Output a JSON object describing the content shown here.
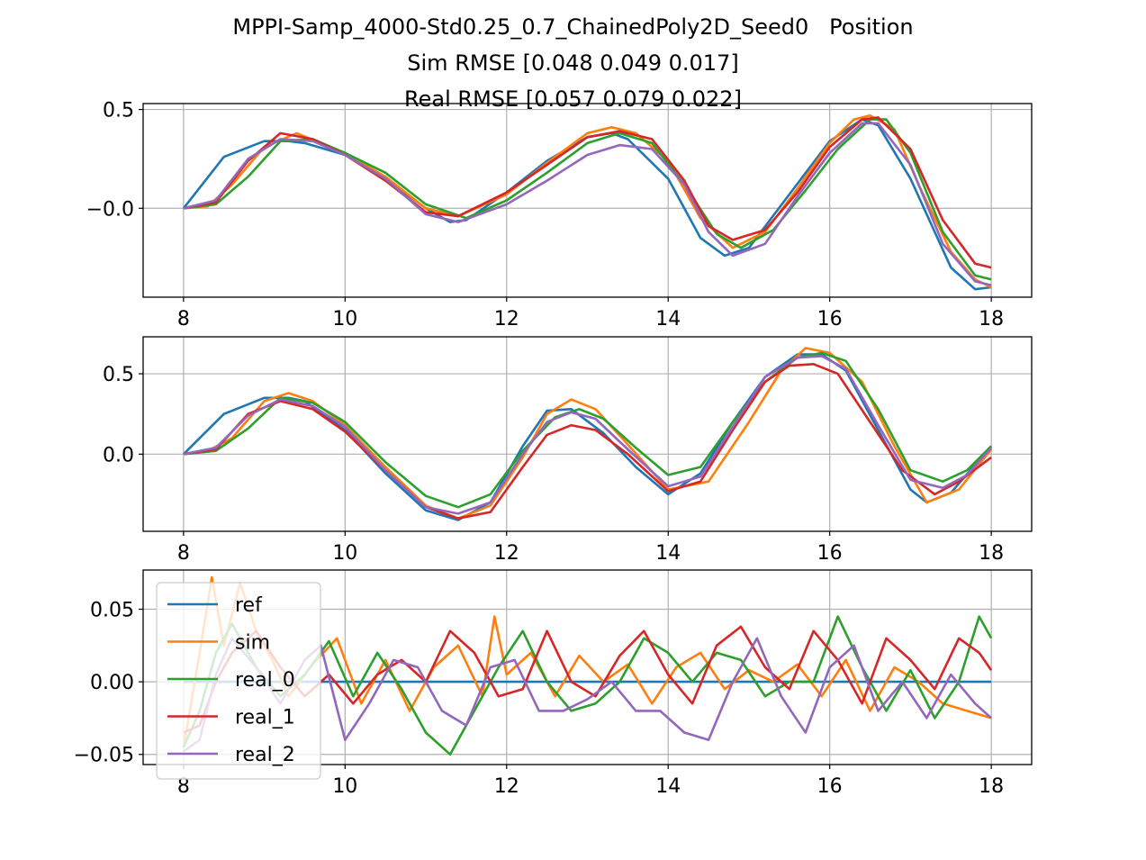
{
  "figure": {
    "title_lines": [
      "MPPI-Samp_4000-Std0.25_0.7_ChainedPoly2D_Seed0   Position",
      "Sim RMSE [0.048 0.049 0.017]",
      "Real RMSE [0.057 0.079 0.022]"
    ],
    "colors": {
      "ref": "#1f77b4",
      "sim": "#ff7f0e",
      "real_0": "#2ca02c",
      "real_1": "#d62728",
      "real_2": "#9467bd",
      "grid": "#b0b0b0"
    }
  },
  "legend": {
    "entries": [
      "ref",
      "sim",
      "real_0",
      "real_1",
      "real_2"
    ],
    "placement": "upper-left of bottom panel"
  },
  "chart_data": [
    {
      "type": "line",
      "panel": "x",
      "xlim": [
        7.5,
        18.5
      ],
      "ylim": [
        -0.45,
        0.53
      ],
      "xticks": [
        "8",
        "10",
        "12",
        "14",
        "16",
        "18"
      ],
      "yticks": [
        "−0.0",
        "0.5"
      ],
      "ytick_values": [
        0.0,
        0.5
      ],
      "grid": true,
      "series": [
        {
          "name": "ref",
          "x": [
            8.0,
            8.5,
            9.0,
            9.3,
            9.5,
            10.0,
            10.5,
            11.0,
            11.3,
            11.5,
            12.0,
            12.5,
            13.0,
            13.3,
            13.5,
            14.0,
            14.4,
            14.7,
            15.0,
            15.5,
            16.0,
            16.4,
            16.6,
            17.0,
            17.5,
            17.8,
            18.0
          ],
          "values": [
            0.0,
            0.26,
            0.34,
            0.34,
            0.33,
            0.27,
            0.15,
            0.0,
            -0.07,
            -0.06,
            0.08,
            0.24,
            0.36,
            0.38,
            0.35,
            0.15,
            -0.15,
            -0.24,
            -0.2,
            0.07,
            0.34,
            0.45,
            0.42,
            0.15,
            -0.3,
            -0.41,
            -0.4
          ]
        },
        {
          "name": "sim",
          "x": [
            8.0,
            8.3,
            8.6,
            9.0,
            9.4,
            10.0,
            10.5,
            11.0,
            11.4,
            12.0,
            12.5,
            13.0,
            13.3,
            13.6,
            14.0,
            14.4,
            14.8,
            15.2,
            15.6,
            16.0,
            16.3,
            16.5,
            16.8,
            17.1,
            17.5,
            17.8,
            18.0
          ],
          "values": [
            0.0,
            0.01,
            0.12,
            0.31,
            0.38,
            0.28,
            0.16,
            0.0,
            -0.04,
            0.07,
            0.23,
            0.38,
            0.41,
            0.38,
            0.24,
            -0.05,
            -0.2,
            -0.12,
            0.1,
            0.33,
            0.45,
            0.47,
            0.4,
            0.12,
            -0.22,
            -0.36,
            -0.4
          ]
        },
        {
          "name": "real_0",
          "x": [
            8.0,
            8.4,
            8.8,
            9.2,
            9.6,
            10.0,
            10.5,
            11.0,
            11.5,
            12.0,
            12.5,
            13.0,
            13.4,
            13.8,
            14.2,
            14.6,
            14.9,
            15.3,
            15.7,
            16.1,
            16.5,
            16.7,
            17.0,
            17.4,
            17.8,
            18.0
          ],
          "values": [
            0.0,
            0.02,
            0.16,
            0.34,
            0.35,
            0.28,
            0.18,
            0.02,
            -0.05,
            0.04,
            0.18,
            0.33,
            0.38,
            0.33,
            0.12,
            -0.13,
            -0.2,
            -0.11,
            0.09,
            0.3,
            0.45,
            0.45,
            0.28,
            -0.12,
            -0.34,
            -0.36
          ]
        },
        {
          "name": "real_1",
          "x": [
            8.0,
            8.4,
            8.8,
            9.2,
            9.6,
            10.0,
            10.5,
            11.0,
            11.4,
            12.0,
            12.5,
            13.0,
            13.4,
            13.8,
            14.2,
            14.5,
            14.8,
            15.2,
            15.6,
            16.0,
            16.4,
            16.6,
            17.0,
            17.4,
            17.8,
            18.0
          ],
          "values": [
            0.0,
            0.03,
            0.24,
            0.38,
            0.35,
            0.27,
            0.14,
            -0.02,
            -0.04,
            0.08,
            0.22,
            0.36,
            0.39,
            0.35,
            0.14,
            -0.09,
            -0.16,
            -0.11,
            0.08,
            0.31,
            0.45,
            0.46,
            0.3,
            -0.06,
            -0.28,
            -0.3
          ]
        },
        {
          "name": "real_2",
          "x": [
            8.0,
            8.4,
            8.8,
            9.2,
            9.6,
            10.0,
            10.5,
            11.0,
            11.4,
            12.0,
            12.5,
            13.0,
            13.4,
            13.8,
            14.2,
            14.5,
            14.8,
            15.2,
            15.6,
            16.0,
            16.4,
            16.6,
            17.0,
            17.4,
            17.8,
            18.0
          ],
          "values": [
            0.0,
            0.04,
            0.25,
            0.35,
            0.34,
            0.27,
            0.15,
            -0.03,
            -0.07,
            0.02,
            0.14,
            0.27,
            0.32,
            0.3,
            0.12,
            -0.12,
            -0.24,
            -0.18,
            0.06,
            0.28,
            0.43,
            0.43,
            0.22,
            -0.18,
            -0.37,
            -0.39
          ]
        }
      ]
    },
    {
      "type": "line",
      "panel": "y",
      "xlim": [
        7.5,
        18.5
      ],
      "ylim": [
        -0.48,
        0.73
      ],
      "xticks": [
        "8",
        "10",
        "12",
        "14",
        "16",
        "18"
      ],
      "yticks": [
        "0.0",
        "0.5"
      ],
      "ytick_values": [
        0.0,
        0.5
      ],
      "grid": true,
      "series": [
        {
          "name": "ref",
          "x": [
            8.0,
            8.5,
            9.0,
            9.3,
            9.5,
            10.0,
            10.5,
            11.0,
            11.4,
            11.8,
            12.2,
            12.5,
            12.8,
            13.2,
            13.6,
            14.0,
            14.4,
            14.8,
            15.2,
            15.6,
            15.9,
            16.2,
            16.6,
            17.0,
            17.2,
            17.5,
            18.0
          ],
          "values": [
            0.0,
            0.25,
            0.35,
            0.35,
            0.33,
            0.15,
            -0.12,
            -0.35,
            -0.41,
            -0.3,
            0.05,
            0.27,
            0.28,
            0.13,
            -0.08,
            -0.25,
            -0.12,
            0.2,
            0.48,
            0.62,
            0.62,
            0.52,
            0.15,
            -0.22,
            -0.3,
            -0.24,
            0.05
          ]
        },
        {
          "name": "sim",
          "x": [
            8.0,
            8.3,
            8.6,
            9.0,
            9.3,
            9.6,
            10.0,
            10.5,
            11.0,
            11.4,
            11.8,
            12.2,
            12.5,
            12.8,
            13.1,
            13.5,
            14.0,
            14.5,
            15.0,
            15.4,
            15.7,
            16.0,
            16.4,
            16.8,
            17.2,
            17.6,
            18.0
          ],
          "values": [
            0.0,
            0.02,
            0.1,
            0.33,
            0.38,
            0.33,
            0.18,
            -0.08,
            -0.32,
            -0.4,
            -0.32,
            -0.02,
            0.25,
            0.34,
            0.28,
            0.06,
            -0.22,
            -0.17,
            0.2,
            0.52,
            0.66,
            0.63,
            0.45,
            0.05,
            -0.3,
            -0.22,
            0.03
          ]
        },
        {
          "name": "real_0",
          "x": [
            8.0,
            8.4,
            8.8,
            9.2,
            9.6,
            10.0,
            10.5,
            11.0,
            11.4,
            11.8,
            12.2,
            12.6,
            12.9,
            13.2,
            13.6,
            14.0,
            14.4,
            14.8,
            15.2,
            15.6,
            15.9,
            16.2,
            16.6,
            17.0,
            17.4,
            17.7,
            18.0
          ],
          "values": [
            0.0,
            0.02,
            0.16,
            0.35,
            0.32,
            0.2,
            -0.05,
            -0.26,
            -0.33,
            -0.25,
            0.02,
            0.23,
            0.28,
            0.22,
            0.04,
            -0.13,
            -0.08,
            0.2,
            0.45,
            0.6,
            0.63,
            0.58,
            0.28,
            -0.1,
            -0.17,
            -0.1,
            0.05
          ]
        },
        {
          "name": "real_1",
          "x": [
            8.0,
            8.4,
            8.8,
            9.2,
            9.6,
            10.0,
            10.5,
            11.0,
            11.4,
            11.8,
            12.2,
            12.5,
            12.8,
            13.1,
            13.5,
            14.0,
            14.4,
            14.8,
            15.2,
            15.5,
            15.8,
            16.1,
            16.5,
            16.9,
            17.3,
            17.6,
            18.0
          ],
          "values": [
            0.0,
            0.03,
            0.25,
            0.33,
            0.28,
            0.14,
            -0.1,
            -0.33,
            -0.4,
            -0.36,
            -0.08,
            0.12,
            0.18,
            0.15,
            0.0,
            -0.23,
            -0.17,
            0.15,
            0.45,
            0.55,
            0.56,
            0.5,
            0.2,
            -0.1,
            -0.25,
            -0.17,
            -0.02
          ]
        },
        {
          "name": "real_2",
          "x": [
            8.0,
            8.4,
            8.8,
            9.2,
            9.6,
            10.0,
            10.5,
            11.0,
            11.4,
            11.8,
            12.2,
            12.5,
            12.8,
            13.1,
            13.5,
            14.0,
            14.4,
            14.8,
            15.2,
            15.6,
            15.9,
            16.2,
            16.6,
            17.0,
            17.4,
            17.7,
            18.0
          ],
          "values": [
            0.0,
            0.04,
            0.24,
            0.34,
            0.3,
            0.17,
            -0.1,
            -0.33,
            -0.37,
            -0.3,
            0.0,
            0.2,
            0.26,
            0.22,
            0.03,
            -0.2,
            -0.14,
            0.17,
            0.48,
            0.6,
            0.61,
            0.53,
            0.18,
            -0.16,
            -0.21,
            -0.13,
            0.04
          ]
        }
      ]
    },
    {
      "type": "line",
      "panel": "z",
      "xlim": [
        7.5,
        18.5
      ],
      "ylim": [
        -0.057,
        0.077
      ],
      "xticks": [
        "8",
        "10",
        "12",
        "14",
        "16",
        "18"
      ],
      "yticks": [
        "−0.05",
        "0.00",
        "0.05"
      ],
      "ytick_values": [
        -0.05,
        0.0,
        0.05
      ],
      "grid": true,
      "series": [
        {
          "name": "ref",
          "x": [
            8.0,
            18.0
          ],
          "values": [
            0.0,
            0.0
          ]
        },
        {
          "name": "sim",
          "x": [
            8.0,
            8.2,
            8.35,
            8.5,
            8.7,
            8.9,
            9.1,
            9.3,
            9.6,
            9.9,
            10.2,
            10.5,
            10.8,
            11.1,
            11.4,
            11.7,
            11.85,
            12.0,
            12.3,
            12.6,
            12.9,
            13.2,
            13.5,
            13.8,
            14.1,
            14.4,
            14.7,
            15.0,
            15.3,
            15.6,
            15.9,
            16.2,
            16.5,
            16.8,
            17.1,
            17.4,
            17.7,
            18.0
          ],
          "values": [
            -0.045,
            0.02,
            0.072,
            0.025,
            0.068,
            0.035,
            0.015,
            -0.01,
            0.012,
            0.03,
            -0.015,
            0.015,
            -0.02,
            0.01,
            0.025,
            -0.01,
            0.045,
            0.005,
            0.02,
            -0.01,
            0.018,
            0.0,
            0.012,
            -0.015,
            0.01,
            0.02,
            -0.005,
            0.008,
            0.0,
            0.012,
            -0.01,
            0.015,
            -0.02,
            0.01,
            0.0,
            -0.015,
            -0.02,
            -0.025
          ]
        },
        {
          "name": "real_0",
          "x": [
            8.0,
            8.2,
            8.4,
            8.6,
            8.9,
            9.2,
            9.5,
            9.8,
            10.1,
            10.4,
            10.7,
            11.0,
            11.3,
            11.6,
            11.9,
            12.2,
            12.5,
            12.8,
            13.1,
            13.4,
            13.7,
            14.0,
            14.3,
            14.6,
            14.9,
            15.2,
            15.5,
            15.8,
            16.1,
            16.4,
            16.7,
            17.0,
            17.3,
            17.6,
            17.85,
            18.0
          ],
          "values": [
            -0.045,
            -0.02,
            0.02,
            0.04,
            0.01,
            -0.01,
            0.005,
            0.028,
            -0.01,
            0.02,
            -0.005,
            -0.035,
            -0.05,
            -0.02,
            0.01,
            0.035,
            0.0,
            -0.02,
            -0.015,
            0.0,
            0.03,
            0.02,
            0.0,
            0.02,
            0.015,
            -0.01,
            0.0,
            0.0,
            0.045,
            0.01,
            -0.02,
            0.008,
            -0.025,
            0.0,
            0.045,
            0.03
          ]
        },
        {
          "name": "real_1",
          "x": [
            8.0,
            8.2,
            8.4,
            8.6,
            8.9,
            9.2,
            9.5,
            9.8,
            10.1,
            10.4,
            10.7,
            11.0,
            11.3,
            11.6,
            11.9,
            12.2,
            12.5,
            12.8,
            13.1,
            13.4,
            13.7,
            14.0,
            14.3,
            14.6,
            14.9,
            15.2,
            15.5,
            15.8,
            16.1,
            16.4,
            16.7,
            17.0,
            17.3,
            17.6,
            17.85,
            18.0
          ],
          "values": [
            -0.035,
            -0.03,
            0.0,
            0.02,
            0.035,
            0.01,
            -0.01,
            0.005,
            -0.015,
            0.005,
            0.015,
            0.0,
            0.035,
            0.02,
            -0.01,
            -0.005,
            0.035,
            0.0,
            -0.01,
            0.018,
            0.035,
            0.005,
            -0.015,
            0.025,
            0.038,
            0.01,
            -0.005,
            0.035,
            0.015,
            -0.015,
            0.03,
            0.015,
            -0.005,
            0.03,
            0.02,
            0.008
          ]
        },
        {
          "name": "real_2",
          "x": [
            8.0,
            8.2,
            8.4,
            8.6,
            8.9,
            9.2,
            9.5,
            9.7,
            10.0,
            10.3,
            10.6,
            10.9,
            11.2,
            11.5,
            11.8,
            12.1,
            12.4,
            12.7,
            13.0,
            13.3,
            13.6,
            13.9,
            14.2,
            14.5,
            14.8,
            15.1,
            15.4,
            15.7,
            16.0,
            16.3,
            16.6,
            16.9,
            17.2,
            17.5,
            17.8,
            18.0
          ],
          "values": [
            -0.048,
            -0.04,
            0.005,
            0.03,
            0.01,
            -0.015,
            0.015,
            0.025,
            -0.04,
            -0.015,
            0.015,
            0.01,
            -0.02,
            -0.03,
            0.01,
            0.015,
            -0.02,
            -0.02,
            -0.012,
            0.0,
            -0.02,
            -0.02,
            -0.035,
            -0.04,
            0.0,
            0.03,
            -0.01,
            -0.035,
            0.01,
            0.025,
            -0.02,
            0.0,
            -0.025,
            0.005,
            -0.015,
            -0.025
          ]
        }
      ]
    }
  ]
}
